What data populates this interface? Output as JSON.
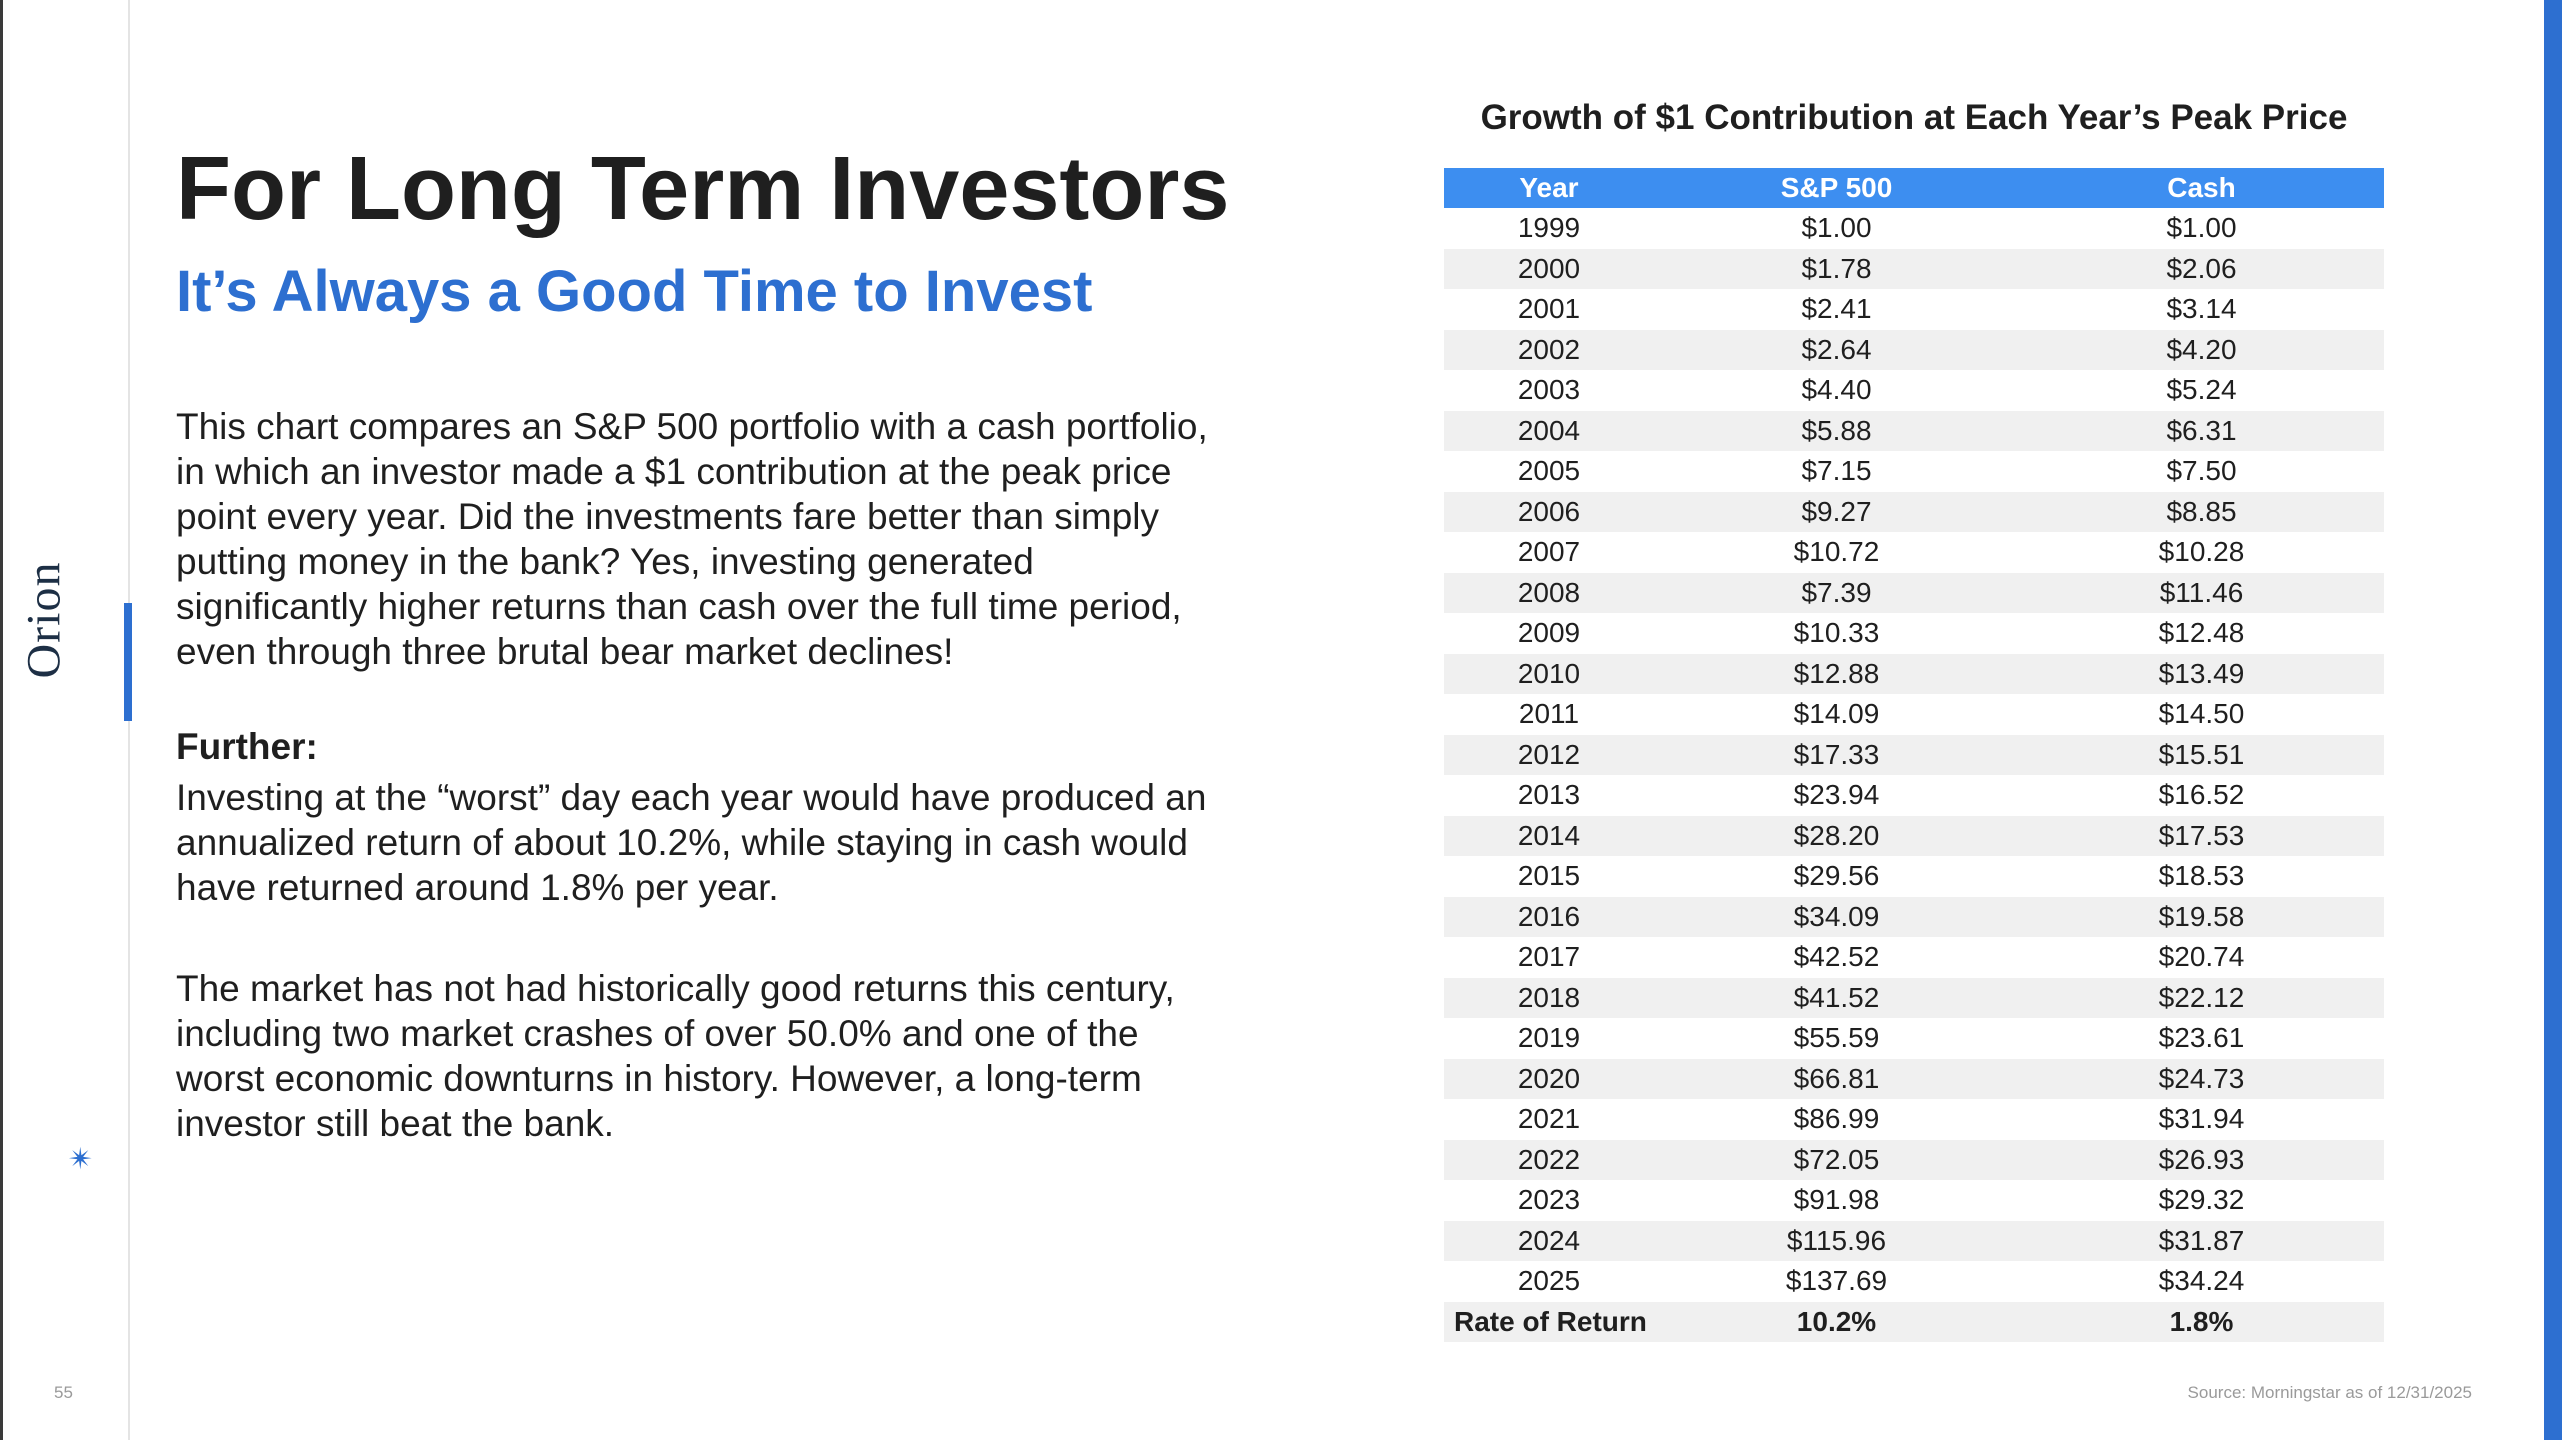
{
  "brand": {
    "logo_text": "Orion",
    "accent_color": "#2d6fd0"
  },
  "page_number": "55",
  "title": "For Long Term Investors",
  "subtitle": "It’s Always a Good Time to Invest",
  "body": {
    "para1": "This chart compares an S&P 500 portfolio with a cash portfolio, in which an investor made a $1 contribution at the peak price point every year. Did the investments fare better than simply putting money in the bank? Yes, investing generated significantly higher returns than cash over the full time period, even through three brutal bear market declines!",
    "further_label": "Further:",
    "para2": "Investing at the “worst” day each year would have produced an annualized return of about 10.2%, while staying in cash would have returned around 1.8% per year.",
    "para3": "The market has not had historically good returns this century, including two market crashes of over 50.0% and one of the worst economic downturns in history. However, a long-term investor still beat the bank."
  },
  "table": {
    "title": "Growth of $1 Contribution at Each Year’s Peak Price",
    "headers": [
      "Year",
      "S&P 500",
      "Cash"
    ],
    "rows": [
      [
        "1999",
        "$1.00",
        "$1.00"
      ],
      [
        "2000",
        "$1.78",
        "$2.06"
      ],
      [
        "2001",
        "$2.41",
        "$3.14"
      ],
      [
        "2002",
        "$2.64",
        "$4.20"
      ],
      [
        "2003",
        "$4.40",
        "$5.24"
      ],
      [
        "2004",
        "$5.88",
        "$6.31"
      ],
      [
        "2005",
        "$7.15",
        "$7.50"
      ],
      [
        "2006",
        "$9.27",
        "$8.85"
      ],
      [
        "2007",
        "$10.72",
        "$10.28"
      ],
      [
        "2008",
        "$7.39",
        "$11.46"
      ],
      [
        "2009",
        "$10.33",
        "$12.48"
      ],
      [
        "2010",
        "$12.88",
        "$13.49"
      ],
      [
        "2011",
        "$14.09",
        "$14.50"
      ],
      [
        "2012",
        "$17.33",
        "$15.51"
      ],
      [
        "2013",
        "$23.94",
        "$16.52"
      ],
      [
        "2014",
        "$28.20",
        "$17.53"
      ],
      [
        "2015",
        "$29.56",
        "$18.53"
      ],
      [
        "2016",
        "$34.09",
        "$19.58"
      ],
      [
        "2017",
        "$42.52",
        "$20.74"
      ],
      [
        "2018",
        "$41.52",
        "$22.12"
      ],
      [
        "2019",
        "$55.59",
        "$23.61"
      ],
      [
        "2020",
        "$66.81",
        "$24.73"
      ],
      [
        "2021",
        "$86.99",
        "$31.94"
      ],
      [
        "2022",
        "$72.05",
        "$26.93"
      ],
      [
        "2023",
        "$91.98",
        "$29.32"
      ],
      [
        "2024",
        "$115.96",
        "$31.87"
      ],
      [
        "2025",
        "$137.69",
        "$34.24"
      ]
    ],
    "total": {
      "label": "Rate of Return",
      "sp500": "10.2%",
      "cash": "1.8%"
    },
    "header_color": "#3d8ef0"
  },
  "source": "Source: Morningstar as of 12/31/2025"
}
